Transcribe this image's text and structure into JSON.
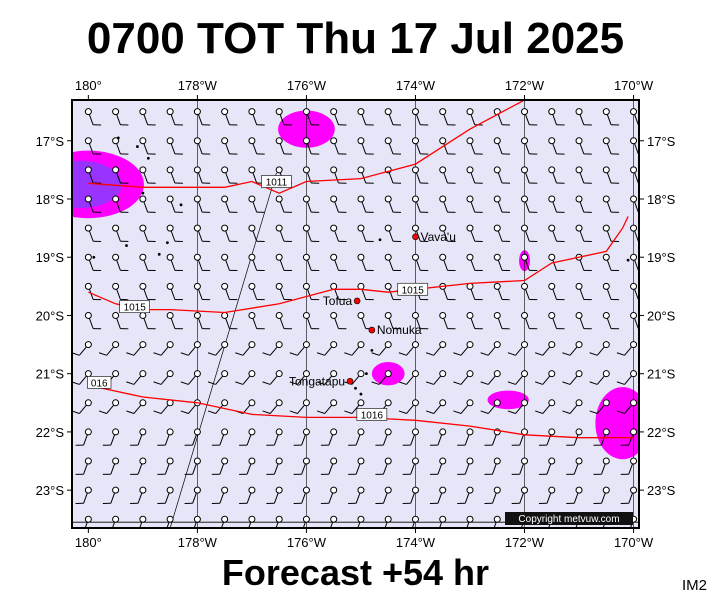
{
  "title": "0700 TOT Thu 17 Jul 2025",
  "forecast": "Forecast +54 hr",
  "model": "IM2",
  "copyright": "Copyright metvuw.com",
  "axes": {
    "lon_labels": [
      "180°",
      "178°W",
      "176°W",
      "174°W",
      "172°W",
      "170°W"
    ],
    "lat_labels": [
      "17°S",
      "18°S",
      "19°S",
      "20°S",
      "21°S",
      "22°S",
      "23°S"
    ]
  },
  "places": [
    {
      "name": "Vava'u",
      "lon": -174.0,
      "lat": -18.65
    },
    {
      "name": "Tofua",
      "lon": -175.07,
      "lat": -19.75
    },
    {
      "name": "Nomuka",
      "lon": -174.8,
      "lat": -20.25
    },
    {
      "name": "Tongatapu",
      "lon": -175.2,
      "lat": -21.13
    }
  ],
  "isobar_labels": [
    {
      "text": "1011",
      "lon": -176.55,
      "lat": -17.7
    },
    {
      "text": "1015",
      "lon": -174.05,
      "lat": -19.55
    },
    {
      "text": "1015",
      "lon": -179.15,
      "lat": -19.85
    },
    {
      "text": "1016",
      "lon": -174.8,
      "lat": -21.7
    },
    {
      "text": "016",
      "lon": -179.8,
      "lat": -21.15
    }
  ],
  "colors": {
    "map_background": "#e6e6f8",
    "isobar": "#ff0000",
    "rain_light": "#ff00ff",
    "rain_heavy": "#9933ff",
    "place_dot": "#ff0000"
  },
  "isobars_lonlat": [
    [
      [
        -180.0,
        -17.73
      ],
      [
        -179.0,
        -17.8
      ],
      [
        -177.5,
        -17.8
      ],
      [
        -177.0,
        -17.7
      ],
      [
        -176.5,
        -17.9
      ],
      [
        -176.0,
        -17.7
      ],
      [
        -175.0,
        -17.65
      ],
      [
        -174.0,
        -17.4
      ],
      [
        -173.0,
        -16.8
      ],
      [
        -172.0,
        -16.3
      ]
    ],
    [
      [
        -180.0,
        -19.6
      ],
      [
        -179.5,
        -19.8
      ],
      [
        -179.0,
        -19.9
      ],
      [
        -178.5,
        -19.9
      ],
      [
        -177.5,
        -19.95
      ],
      [
        -176.5,
        -19.8
      ],
      [
        -175.5,
        -19.55
      ],
      [
        -175.0,
        -19.55
      ],
      [
        -174.5,
        -19.6
      ],
      [
        -174.0,
        -19.55
      ],
      [
        -173.0,
        -19.45
      ],
      [
        -172.0,
        -19.4
      ],
      [
        -171.5,
        -19.1
      ],
      [
        -170.5,
        -18.9
      ],
      [
        -170.2,
        -18.5
      ],
      [
        -170.1,
        -18.3
      ]
    ],
    [
      [
        -180.0,
        -21.2
      ],
      [
        -179.0,
        -21.4
      ],
      [
        -178.0,
        -21.5
      ],
      [
        -177.0,
        -21.7
      ],
      [
        -176.0,
        -21.75
      ],
      [
        -175.0,
        -21.75
      ],
      [
        -174.0,
        -21.8
      ],
      [
        -173.0,
        -21.9
      ],
      [
        -172.0,
        -22.05
      ],
      [
        -171.0,
        -22.1
      ],
      [
        -170.0,
        -22.1
      ]
    ]
  ],
  "precip_blobs": [
    {
      "lon": -180.0,
      "lat": -17.75,
      "rx": 1.02,
      "ry": 0.58,
      "level": "heavy"
    },
    {
      "lon": -176.0,
      "lat": -16.8,
      "rx": 0.52,
      "ry": 0.32,
      "level": "light"
    },
    {
      "lon": -174.5,
      "lat": -21.0,
      "rx": 0.3,
      "ry": 0.2,
      "level": "light"
    },
    {
      "lon": -172.3,
      "lat": -21.45,
      "rx": 0.38,
      "ry": 0.16,
      "level": "light"
    },
    {
      "lon": -172.0,
      "lat": -19.06,
      "rx": 0.1,
      "ry": 0.18,
      "level": "light"
    },
    {
      "lon": -170.2,
      "lat": -21.85,
      "rx": 0.5,
      "ry": 0.62,
      "level": "light"
    }
  ]
}
